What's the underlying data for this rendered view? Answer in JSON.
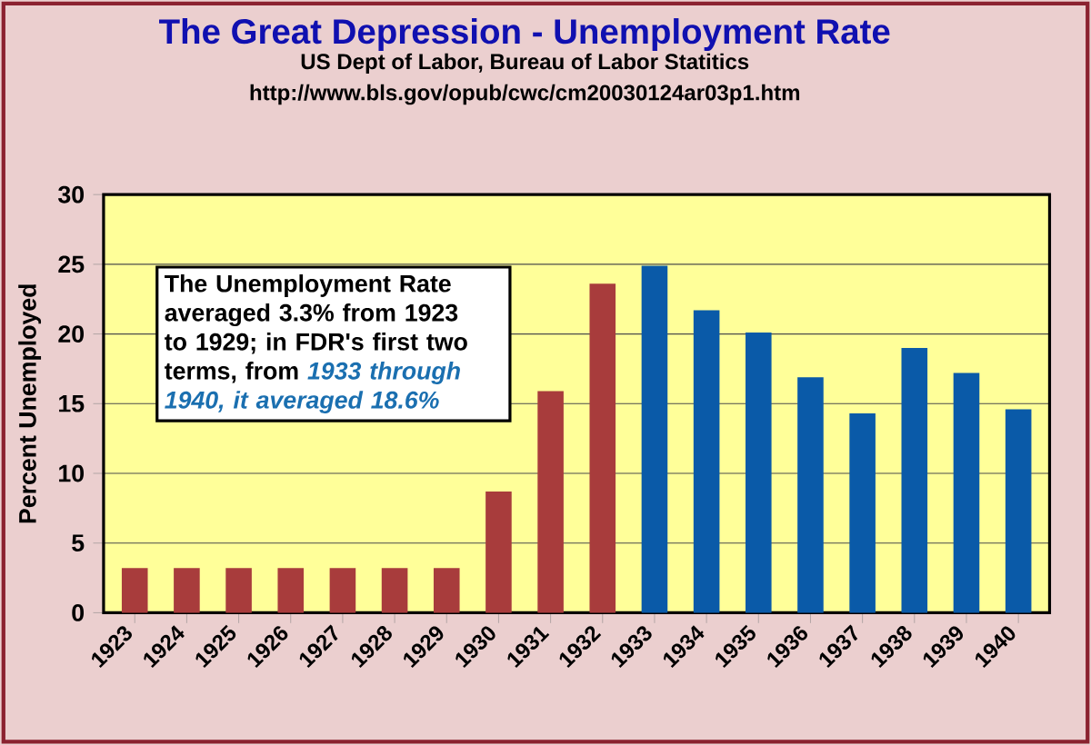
{
  "chart_data": {
    "type": "bar",
    "title": "The Great Depression - Unemployment Rate",
    "subtitle": "US Dept of Labor, Bureau of Labor Statitics",
    "annotations": [
      "http://www.bls.gov/opub/cwc/cm20030124ar03p1.htm",
      "The Unemployment Rate averaged 3.3% from 1923 to 1929; in FDR's first two terms, from",
      "1933 through 1940, it averaged 18.6%"
    ],
    "ylabel": "Percent Unemployed",
    "categories": [
      "1923",
      "1924",
      "1925",
      "1926",
      "1927",
      "1928",
      "1929",
      "1930",
      "1931",
      "1932",
      "1933",
      "1934",
      "1935",
      "1936",
      "1937",
      "1938",
      "1939",
      "1940"
    ],
    "values": [
      3.2,
      3.2,
      3.2,
      3.2,
      3.2,
      3.2,
      3.2,
      8.7,
      15.9,
      23.6,
      24.9,
      21.7,
      20.1,
      16.9,
      14.3,
      19.0,
      17.2,
      14.6
    ],
    "colors": [
      "#a83c3c",
      "#a83c3c",
      "#a83c3c",
      "#a83c3c",
      "#a83c3c",
      "#a83c3c",
      "#a83c3c",
      "#a83c3c",
      "#a83c3c",
      "#a83c3c",
      "#0a5aa8",
      "#0a5aa8",
      "#0a5aa8",
      "#0a5aa8",
      "#0a5aa8",
      "#0a5aa8",
      "#0a5aa8",
      "#0a5aa8"
    ],
    "ylim": [
      0,
      30
    ],
    "yticks": [
      0,
      5,
      10,
      15,
      20,
      25,
      30
    ],
    "grid": "y"
  }
}
